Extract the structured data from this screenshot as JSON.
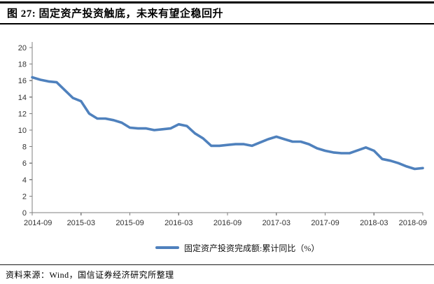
{
  "title": {
    "text": "图 27:  固定资产投资触底，未来有望企稳回升"
  },
  "footer": {
    "text": "资料来源：Wind，国信证券经济研究所整理"
  },
  "colors": {
    "line": "#4F81BD",
    "axis": "#7f7f7f",
    "tick_text": "#333333",
    "title_text": "#000000"
  },
  "chart_data": {
    "type": "line",
    "title": "",
    "xlabel": "",
    "ylabel": "",
    "ylim": [
      0,
      20
    ],
    "y_tick_step": 2,
    "grid": false,
    "legend_position": "bottom",
    "x": [
      "2014-09",
      "2014-10",
      "2014-11",
      "2014-12",
      "2015-01",
      "2015-02",
      "2015-03",
      "2015-04",
      "2015-05",
      "2015-06",
      "2015-07",
      "2015-08",
      "2015-09",
      "2015-10",
      "2015-11",
      "2015-12",
      "2016-01",
      "2016-02",
      "2016-03",
      "2016-04",
      "2016-05",
      "2016-06",
      "2016-07",
      "2016-08",
      "2016-09",
      "2016-10",
      "2016-11",
      "2016-12",
      "2017-01",
      "2017-02",
      "2017-03",
      "2017-04",
      "2017-05",
      "2017-06",
      "2017-07",
      "2017-08",
      "2017-09",
      "2017-10",
      "2017-11",
      "2017-12",
      "2018-01",
      "2018-02",
      "2018-03",
      "2018-04",
      "2018-05",
      "2018-06",
      "2018-07",
      "2018-08",
      "2018-09"
    ],
    "x_tick_labels": [
      "2014-09",
      "2015-03",
      "2015-09",
      "2016-03",
      "2016-09",
      "2017-03",
      "2017-09",
      "2018-03",
      "2018-09"
    ],
    "x_tick_every": 6,
    "series": [
      {
        "name": "固定资产投资完成额:累计同比（%）",
        "color": "#4F81BD",
        "values": [
          16.4,
          16.1,
          15.9,
          15.8,
          14.85,
          13.9,
          13.5,
          12.0,
          11.4,
          11.4,
          11.2,
          10.9,
          10.3,
          10.2,
          10.2,
          10.0,
          10.1,
          10.2,
          10.7,
          10.5,
          9.6,
          9.0,
          8.1,
          8.1,
          8.2,
          8.3,
          8.3,
          8.1,
          8.5,
          8.9,
          9.2,
          8.9,
          8.6,
          8.6,
          8.3,
          7.8,
          7.5,
          7.3,
          7.2,
          7.2,
          7.55,
          7.9,
          7.5,
          6.5,
          6.3,
          6.0,
          5.6,
          5.3,
          5.4
        ]
      }
    ]
  }
}
